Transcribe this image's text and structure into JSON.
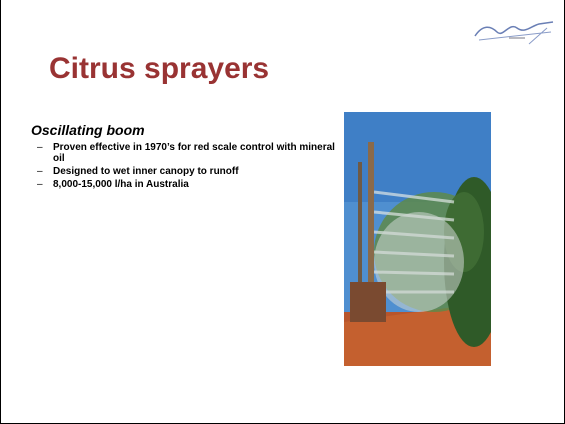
{
  "slide": {
    "title": "Citrus sprayers",
    "subtitle": "Oscillating boom",
    "bullets": [
      "Proven effective in 1970’s for red scale control with mineral oil",
      "Designed to wet inner canopy to runoff",
      "8,000-15,000 l/ha in Australia"
    ]
  }
}
